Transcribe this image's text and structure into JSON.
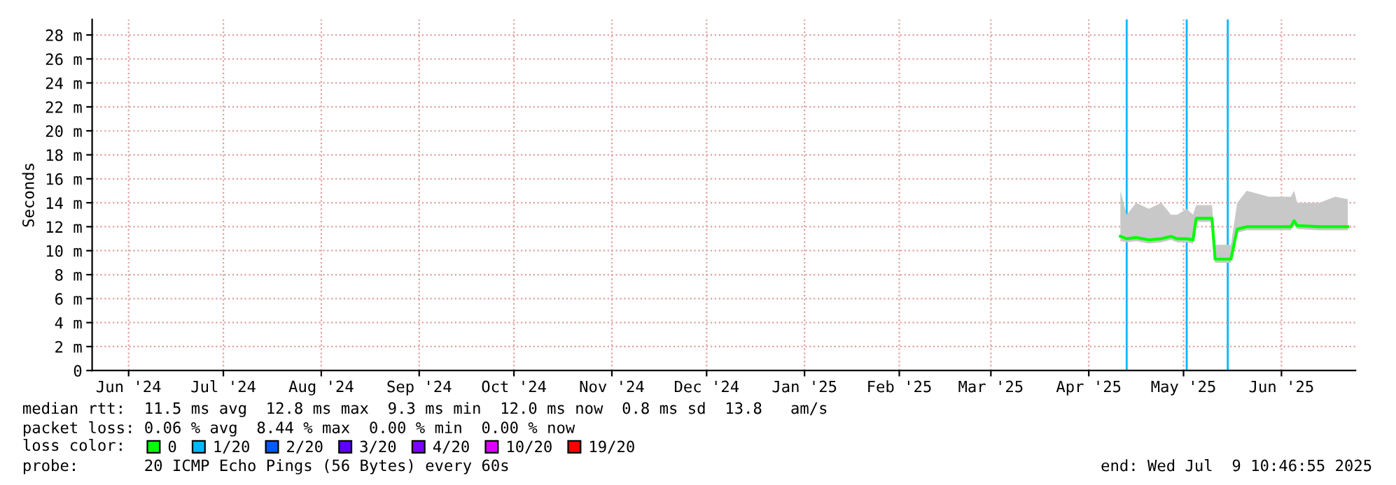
{
  "chart_data": {
    "type": "line",
    "ylabel": "Seconds",
    "xlim": [
      "2024-06-04T10:46",
      "2025-07-09T10:46"
    ],
    "xticks": [
      {
        "value": "2024-06-16",
        "label": "Jun '24"
      },
      {
        "value": "2024-07-16",
        "label": "Jul '24"
      },
      {
        "value": "2024-08-16",
        "label": "Aug '24"
      },
      {
        "value": "2024-09-16",
        "label": "Sep '24"
      },
      {
        "value": "2024-10-16",
        "label": "Oct '24"
      },
      {
        "value": "2024-11-16",
        "label": "Nov '24"
      },
      {
        "value": "2024-12-16",
        "label": "Dec '24"
      },
      {
        "value": "2025-01-16",
        "label": "Jan '25"
      },
      {
        "value": "2025-02-15",
        "label": "Feb '25"
      },
      {
        "value": "2025-03-16",
        "label": "Mar '25"
      },
      {
        "value": "2025-04-16",
        "label": "Apr '25"
      },
      {
        "value": "2025-05-16",
        "label": "May '25"
      },
      {
        "value": "2025-06-16",
        "label": "Jun '25"
      }
    ],
    "ylim": [
      0,
      29.3
    ],
    "yticks": [
      0,
      {
        "value": 2,
        "label": "2 m"
      },
      {
        "value": 4,
        "label": "4 m"
      },
      {
        "value": 6,
        "label": "6 m"
      },
      {
        "value": 8,
        "label": "8 m"
      },
      {
        "value": 10,
        "label": "10 m"
      },
      {
        "value": 12,
        "label": "12 m"
      },
      {
        "value": 14,
        "label": "14 m"
      },
      {
        "value": 16,
        "label": "16 m"
      },
      {
        "value": 18,
        "label": "18 m"
      },
      {
        "value": 20,
        "label": "20 m"
      },
      {
        "value": 22,
        "label": "22 m"
      },
      {
        "value": 24,
        "label": "24 m"
      },
      {
        "value": 26,
        "label": "26 m"
      },
      {
        "value": 28,
        "label": "28 m"
      }
    ],
    "grid": true,
    "legend": "bottom",
    "legend_title": "loss color:",
    "series": [
      {
        "name": "0",
        "color": "#00ff00",
        "x": [
          "2025-04-26",
          "2025-04-28",
          "2025-05-01",
          "2025-05-05",
          "2025-05-09",
          "2025-05-12",
          "2025-05-14",
          "2025-05-17",
          "2025-05-19",
          "2025-05-20",
          "2025-05-24",
          "2025-05-25",
          "2025-05-26",
          "2025-05-31",
          "2025-06-02",
          "2025-06-05",
          "2025-06-12",
          "2025-06-19",
          "2025-06-20",
          "2025-06-21",
          "2025-06-28",
          "2025-07-03",
          "2025-07-07"
        ],
        "values": [
          11.2,
          11,
          11.1,
          10.9,
          11,
          11.2,
          11,
          11,
          10.9,
          12.7,
          12.7,
          12.7,
          9.3,
          9.3,
          11.8,
          12,
          12,
          12,
          12.5,
          12.1,
          12,
          12,
          12
        ],
        "lower": [
          10.8,
          10.7,
          10.8,
          10.6,
          10.7,
          10.9,
          10.7,
          10.7,
          10.6,
          12.4,
          12.4,
          12.4,
          9,
          9,
          11.5,
          11.7,
          11.7,
          11.7,
          12.1,
          11.8,
          11.7,
          11.7,
          11.7
        ],
        "upper": [
          15,
          13,
          14,
          13.5,
          14,
          13,
          13,
          13.5,
          13,
          13.8,
          13.8,
          13.8,
          10.5,
          10.5,
          14,
          15,
          14.5,
          14.5,
          15,
          14,
          14,
          14.5,
          14.3
        ]
      },
      {
        "name": "1/20",
        "color": "#00b8ff"
      },
      {
        "name": "2/20",
        "color": "#0059ff"
      },
      {
        "name": "3/20",
        "color": "#5e00ff"
      },
      {
        "name": "4/20",
        "color": "#7e00ff"
      },
      {
        "name": "10/20",
        "color": "#dd00ff"
      },
      {
        "name": "19/20",
        "color": "#ff0000"
      }
    ],
    "ref_lines": [
      {
        "axis": "x",
        "value": "2025-04-28",
        "color": "#00b8ff"
      },
      {
        "axis": "x",
        "value": "2025-05-17",
        "color": "#00b8ff"
      },
      {
        "axis": "x",
        "value": "2025-05-30",
        "color": "#00b8ff"
      }
    ],
    "annotations": [
      "median rtt:  11.5 ms avg  12.8 ms max  9.3 ms min  12.0 ms now  0.8 ms sd  13.8   am/s",
      "packet loss: 0.06 % avg  8.44 % max  0.00 % min  0.00 % now",
      "probe:       20 ICMP Echo Pings (56 Bytes) every 60s",
      "end: Wed Jul  9 10:46:55 2025"
    ]
  }
}
